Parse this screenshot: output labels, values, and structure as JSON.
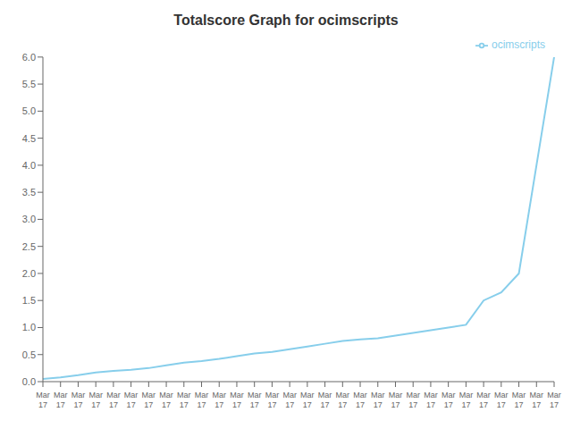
{
  "chart_data": {
    "type": "line",
    "title": "Totalscore Graph for ocimscripts",
    "categories": [
      "Mar\n17",
      "Mar\n17",
      "Mar\n17",
      "Mar\n17",
      "Mar\n17",
      "Mar\n17",
      "Mar\n17",
      "Mar\n17",
      "Mar\n17",
      "Mar\n17",
      "Mar\n17",
      "Mar\n17",
      "Mar\n17",
      "Mar\n17",
      "Mar\n17",
      "Mar\n17",
      "Mar\n17",
      "Mar\n17",
      "Mar\n17",
      "Mar\n17",
      "Mar\n17",
      "Mar\n17",
      "Mar\n17",
      "Mar\n17",
      "Mar\n17",
      "Mar\n17",
      "Mar\n17",
      "Mar\n17",
      "Mar\n17",
      "Mar\n17"
    ],
    "series": [
      {
        "name": "ocimscripts",
        "color": "#87CEEB",
        "values": [
          0.05,
          0.08,
          0.12,
          0.17,
          0.2,
          0.22,
          0.25,
          0.3,
          0.35,
          0.38,
          0.42,
          0.47,
          0.52,
          0.55,
          0.6,
          0.65,
          0.7,
          0.75,
          0.78,
          0.8,
          0.85,
          0.9,
          0.95,
          1.0,
          1.05,
          1.5,
          1.65,
          2.0,
          4.0,
          6.0
        ]
      }
    ],
    "ylim": [
      0.0,
      6.0
    ],
    "yticks": [
      {
        "value": 0,
        "label": "0.0"
      },
      0.5,
      {
        "value": 1,
        "label": "1.0"
      },
      1.5,
      {
        "value": 2,
        "label": "2.0"
      },
      2.5,
      {
        "value": 3,
        "label": "3.0"
      },
      3.5,
      {
        "value": 4,
        "label": "4.0"
      },
      4.5,
      {
        "value": 5,
        "label": "5.0"
      },
      5.5,
      {
        "value": 6,
        "label": "6.0"
      }
    ],
    "grid": false,
    "legend": "upper right"
  }
}
